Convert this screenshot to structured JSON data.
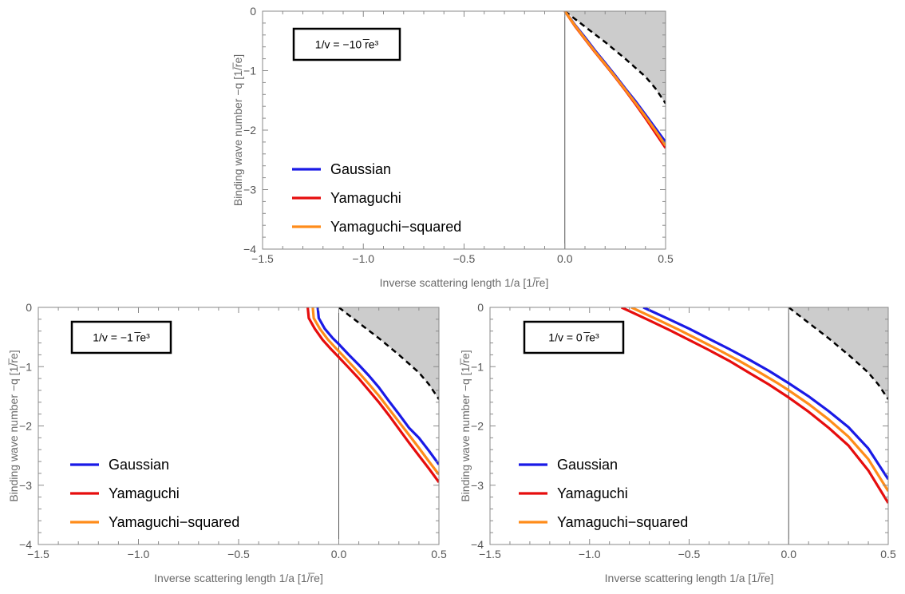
{
  "chart_data": [
    {
      "type": "line",
      "title": "",
      "annotation": "1/v = −10 r̅e³",
      "xlabel": "Inverse scattering length 1/a  [1/r̅e]",
      "ylabel": "Binding wave number −q  [1/r̅e]",
      "xlim": [
        -1.5,
        0.5
      ],
      "ylim": [
        -4,
        0
      ],
      "xticks": [
        "−1.5",
        "−1.0",
        "−0.5",
        "0.0",
        "0.5"
      ],
      "yticks": [
        "0",
        "−1",
        "−2",
        "−3",
        "−4"
      ],
      "legend": [
        "Gaussian",
        "Yamaguchi",
        "Yamaguchi−squared"
      ],
      "legend_position": "bottom-left",
      "grid": false,
      "shaded_region": "between dashed curve and zero line, x ≥ 0",
      "series": [
        {
          "name": "Gaussian",
          "color": "#1a1ae6",
          "x": [
            0.0,
            0.05,
            0.1,
            0.15,
            0.2,
            0.25,
            0.3,
            0.35,
            0.4,
            0.45,
            0.5
          ],
          "y": [
            0.0,
            -0.23,
            -0.44,
            -0.66,
            -0.87,
            -1.08,
            -1.3,
            -1.51,
            -1.74,
            -1.97,
            -2.2
          ]
        },
        {
          "name": "Yamaguchi",
          "color": "#e60d0d",
          "x": [
            0.0,
            0.05,
            0.1,
            0.15,
            0.2,
            0.25,
            0.3,
            0.35,
            0.4,
            0.45,
            0.5
          ],
          "y": [
            0.0,
            -0.25,
            -0.47,
            -0.69,
            -0.9,
            -1.11,
            -1.33,
            -1.56,
            -1.8,
            -2.05,
            -2.3
          ]
        },
        {
          "name": "Yamaguchi−squared",
          "color": "#ff8c1a",
          "x": [
            0.0,
            0.05,
            0.1,
            0.15,
            0.2,
            0.25,
            0.3,
            0.35,
            0.4,
            0.45,
            0.5
          ],
          "y": [
            0.0,
            -0.24,
            -0.46,
            -0.68,
            -0.89,
            -1.1,
            -1.32,
            -1.54,
            -1.77,
            -2.01,
            -2.26
          ]
        },
        {
          "name": "",
          "style": "dashed",
          "color": "#000000",
          "x": [
            0.0,
            0.05,
            0.1,
            0.15,
            0.2,
            0.25,
            0.3,
            0.35,
            0.4,
            0.45,
            0.5
          ],
          "y": [
            0.0,
            -0.13,
            -0.26,
            -0.39,
            -0.52,
            -0.66,
            -0.8,
            -0.95,
            -1.1,
            -1.3,
            -1.55
          ]
        }
      ]
    },
    {
      "type": "line",
      "title": "",
      "annotation": "1/v = −1 r̅e³",
      "xlabel": "Inverse scattering length 1/a  [1/r̅e]",
      "ylabel": "Binding wave number −q  [1/r̅e]",
      "xlim": [
        -1.5,
        0.5
      ],
      "ylim": [
        -4,
        0
      ],
      "xticks": [
        "−1.5",
        "−1.0",
        "−0.5",
        "0.0",
        "0.5"
      ],
      "yticks": [
        "0",
        "−1",
        "−2",
        "−3",
        "−4"
      ],
      "legend": [
        "Gaussian",
        "Yamaguchi",
        "Yamaguchi−squared"
      ],
      "legend_position": "bottom-left",
      "grid": false,
      "shaded_region": "between dashed curve and zero line, x ≥ 0",
      "series": [
        {
          "name": "Gaussian",
          "color": "#1a1ae6",
          "x": [
            -0.105,
            -0.1,
            -0.07,
            -0.03,
            0.0,
            0.05,
            0.1,
            0.15,
            0.2,
            0.25,
            0.3,
            0.35,
            0.4,
            0.45,
            0.5
          ],
          "y": [
            0.0,
            -0.18,
            -0.36,
            -0.52,
            -0.62,
            -0.8,
            -0.97,
            -1.15,
            -1.35,
            -1.58,
            -1.8,
            -2.03,
            -2.2,
            -2.42,
            -2.65
          ]
        },
        {
          "name": "Yamaguchi",
          "color": "#e60d0d",
          "x": [
            -0.155,
            -0.15,
            -0.12,
            -0.08,
            -0.04,
            0.0,
            0.05,
            0.1,
            0.15,
            0.2,
            0.25,
            0.3,
            0.35,
            0.4,
            0.45,
            0.5
          ],
          "y": [
            0.0,
            -0.18,
            -0.36,
            -0.55,
            -0.7,
            -0.84,
            -1.02,
            -1.2,
            -1.4,
            -1.6,
            -1.82,
            -2.05,
            -2.28,
            -2.5,
            -2.72,
            -2.95
          ]
        },
        {
          "name": "Yamaguchi−squared",
          "color": "#ff8c1a",
          "x": [
            -0.13,
            -0.125,
            -0.095,
            -0.055,
            -0.02,
            0.0,
            0.05,
            0.1,
            0.15,
            0.2,
            0.25,
            0.3,
            0.35,
            0.4,
            0.45,
            0.5
          ],
          "y": [
            0.0,
            -0.18,
            -0.36,
            -0.54,
            -0.67,
            -0.74,
            -0.92,
            -1.1,
            -1.29,
            -1.49,
            -1.71,
            -1.93,
            -2.15,
            -2.37,
            -2.6,
            -2.82
          ]
        },
        {
          "name": "",
          "style": "dashed",
          "color": "#000000",
          "x": [
            0.0,
            0.05,
            0.1,
            0.15,
            0.2,
            0.25,
            0.3,
            0.35,
            0.4,
            0.45,
            0.5
          ],
          "y": [
            0.0,
            -0.13,
            -0.26,
            -0.39,
            -0.52,
            -0.66,
            -0.8,
            -0.95,
            -1.1,
            -1.3,
            -1.55
          ]
        }
      ]
    },
    {
      "type": "line",
      "title": "",
      "annotation": "1/v = 0 r̅e³",
      "xlabel": "Inverse scattering length 1/a  [1/r̅e]",
      "ylabel": "Binding wave number −q  [1/r̅e]",
      "xlim": [
        -1.5,
        0.5
      ],
      "ylim": [
        -4,
        0
      ],
      "xticks": [
        "−1.5",
        "−1.0",
        "−0.5",
        "0.0",
        "0.5"
      ],
      "yticks": [
        "0",
        "−1",
        "−2",
        "−3",
        "−4"
      ],
      "legend": [
        "Gaussian",
        "Yamaguchi",
        "Yamaguchi−squared"
      ],
      "legend_position": "bottom-left",
      "grid": false,
      "shaded_region": "between dashed curve and zero line, x ≥ 0",
      "series": [
        {
          "name": "Gaussian",
          "color": "#1a1ae6",
          "x": [
            -0.73,
            -0.6,
            -0.5,
            -0.4,
            -0.3,
            -0.2,
            -0.1,
            0.0,
            0.1,
            0.2,
            0.3,
            0.4,
            0.5
          ],
          "y": [
            0.0,
            -0.2,
            -0.36,
            -0.53,
            -0.7,
            -0.88,
            -1.07,
            -1.28,
            -1.5,
            -1.75,
            -2.02,
            -2.38,
            -2.9
          ]
        },
        {
          "name": "Yamaguchi",
          "color": "#e60d0d",
          "x": [
            -0.84,
            -0.7,
            -0.6,
            -0.5,
            -0.4,
            -0.3,
            -0.2,
            -0.1,
            0.0,
            0.1,
            0.2,
            0.3,
            0.4,
            0.5
          ],
          "y": [
            0.0,
            -0.22,
            -0.38,
            -0.55,
            -0.72,
            -0.9,
            -1.1,
            -1.3,
            -1.52,
            -1.76,
            -2.03,
            -2.33,
            -2.75,
            -3.3
          ]
        },
        {
          "name": "Yamaguchi−squared",
          "color": "#ff8c1a",
          "x": [
            -0.79,
            -0.65,
            -0.55,
            -0.45,
            -0.35,
            -0.25,
            -0.15,
            -0.05,
            0.0,
            0.1,
            0.2,
            0.3,
            0.4,
            0.5
          ],
          "y": [
            0.0,
            -0.22,
            -0.38,
            -0.55,
            -0.72,
            -0.9,
            -1.09,
            -1.29,
            -1.4,
            -1.63,
            -1.89,
            -2.18,
            -2.56,
            -3.1
          ]
        },
        {
          "name": "",
          "style": "dashed",
          "color": "#000000",
          "x": [
            0.0,
            0.05,
            0.1,
            0.15,
            0.2,
            0.25,
            0.3,
            0.35,
            0.4,
            0.45,
            0.5
          ],
          "y": [
            0.0,
            -0.13,
            -0.26,
            -0.39,
            -0.52,
            -0.66,
            -0.8,
            -0.95,
            -1.1,
            -1.3,
            -1.55
          ]
        }
      ]
    }
  ]
}
